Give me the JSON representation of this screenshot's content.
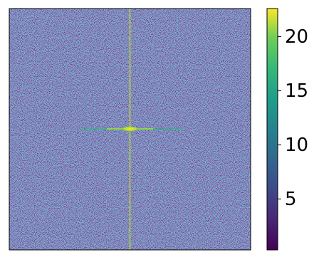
{
  "chart_data": {
    "type": "heatmap",
    "colormap": "viridis",
    "clim": [
      0.3,
      22.6
    ],
    "colorbar_ticks": [
      5,
      10,
      15,
      20
    ]
  }
}
